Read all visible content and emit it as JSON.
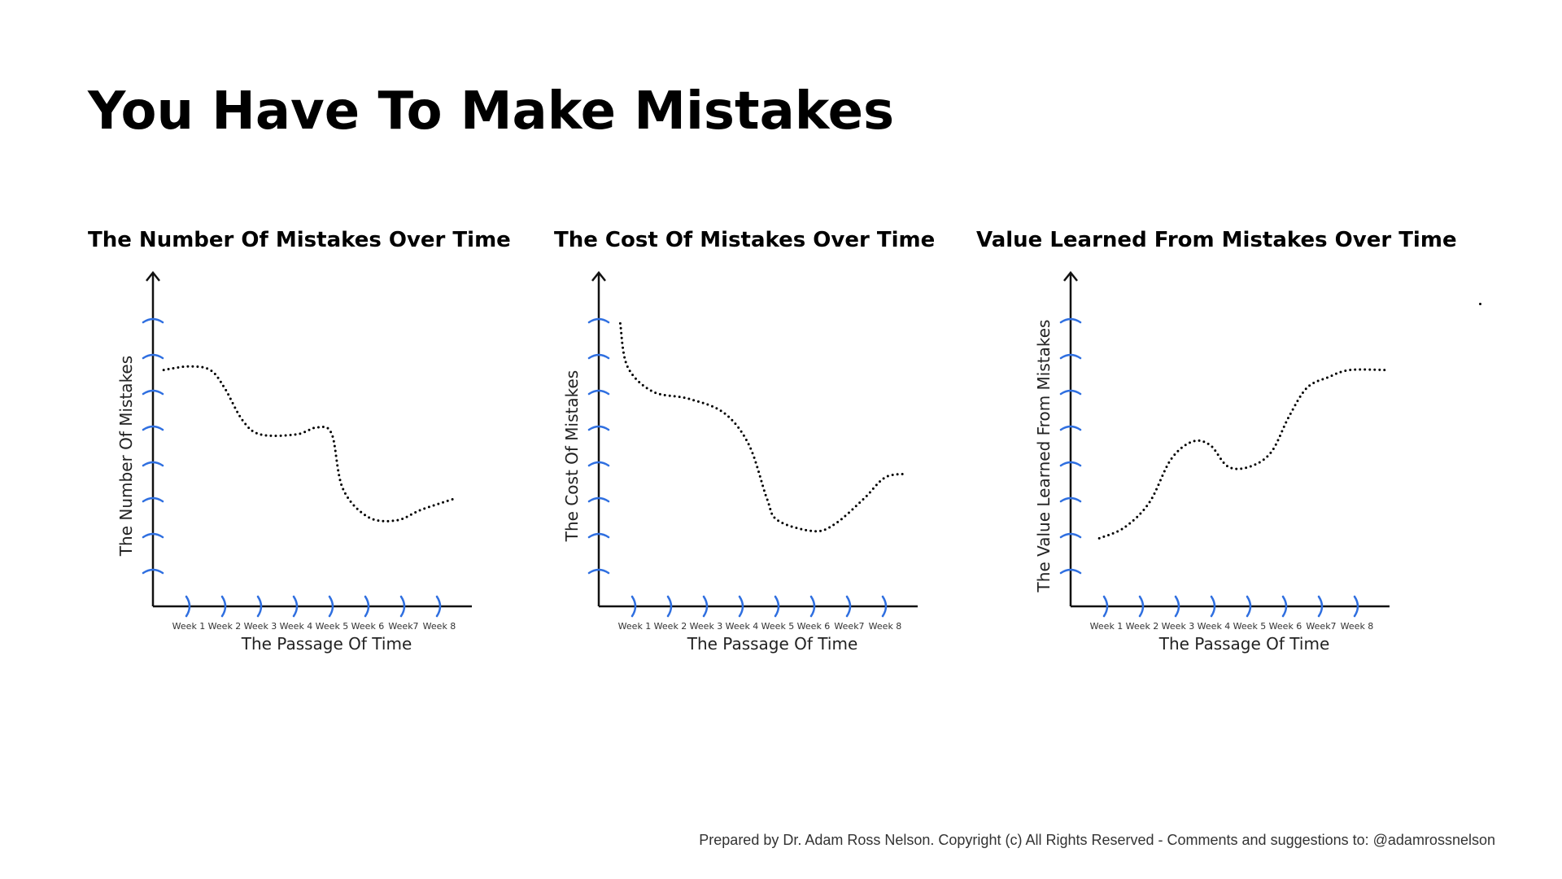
{
  "page": {
    "title": "You Have To Make Mistakes",
    "footer": "Prepared by Dr. Adam Ross Nelson. Copyright (c) All Rights Reserved - Comments and suggestions to: @adamrossnelson"
  },
  "colors": {
    "tick": "#2f6fe0",
    "axis": "#111111",
    "curve": "#000000"
  },
  "chart_data": [
    {
      "type": "line",
      "title": "The Number Of Mistakes Over Time",
      "xlabel": "The Passage Of Time",
      "ylabel": "The Number Of Mistakes",
      "tick_labels": [
        "Week 1",
        "Week 2",
        "Week 3",
        "Week 4",
        "Week 5",
        "Week 6",
        "Week7",
        "Week 8"
      ],
      "y_tick_count": 8,
      "ylim": [
        0,
        8
      ],
      "series": [
        {
          "x": [
            0.3,
            1.0,
            1.6,
            2.0,
            2.5,
            3.0,
            4.0,
            4.6,
            5.0,
            5.3,
            6.0,
            6.8,
            7.5,
            8.4
          ],
          "y": [
            6.6,
            6.7,
            6.6,
            6.1,
            5.2,
            4.8,
            4.8,
            5.0,
            4.8,
            3.3,
            2.5,
            2.4,
            2.7,
            3.0
          ]
        }
      ]
    },
    {
      "type": "line",
      "title": "The Cost Of Mistakes Over Time",
      "xlabel": "The Passage Of Time",
      "ylabel": "The Cost Of Mistakes",
      "tick_labels": [
        "Week 1",
        "Week 2",
        "Week 3",
        "Week 4",
        "Week 5",
        "Week 6",
        "Week7",
        "Week 8"
      ],
      "y_tick_count": 8,
      "ylim": [
        0,
        8
      ],
      "series": [
        {
          "x": [
            0.6,
            0.8,
            1.5,
            2.5,
            3.5,
            4.2,
            4.7,
            5.0,
            6.0,
            6.6,
            7.4,
            8.0,
            8.6
          ],
          "y": [
            7.9,
            6.7,
            6.0,
            5.8,
            5.4,
            4.5,
            3.0,
            2.4,
            2.1,
            2.3,
            3.0,
            3.6,
            3.7
          ]
        }
      ]
    },
    {
      "type": "line",
      "title": "Value Learned From Mistakes Over Time",
      "xlabel": "The Passage Of Time",
      "ylabel": "The Value Learned From Mistakes",
      "tick_labels": [
        "Week 1",
        "Week 2",
        "Week 3",
        "Week 4",
        "Week 5",
        "Week 6",
        "Week7",
        "Week 8"
      ],
      "y_tick_count": 8,
      "ylim": [
        0,
        8
      ],
      "series": [
        {
          "x": [
            0.8,
            1.5,
            2.2,
            2.8,
            3.4,
            3.9,
            4.4,
            5.0,
            5.6,
            6.1,
            6.6,
            7.2,
            7.8,
            8.8
          ],
          "y": [
            1.9,
            2.2,
            2.9,
            4.1,
            4.6,
            4.5,
            3.9,
            3.9,
            4.3,
            5.3,
            6.1,
            6.4,
            6.6,
            6.6
          ]
        }
      ]
    }
  ]
}
